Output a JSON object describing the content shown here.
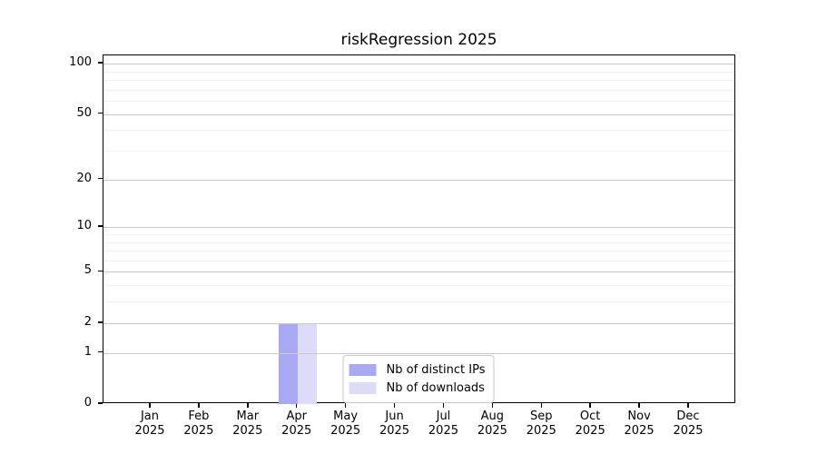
{
  "chart_data": {
    "type": "bar",
    "title": "riskRegression 2025",
    "x_categories": [
      "Jan",
      "Feb",
      "Mar",
      "Apr",
      "May",
      "Jun",
      "Jul",
      "Aug",
      "Sep",
      "Oct",
      "Nov",
      "Dec"
    ],
    "x_year": "2025",
    "series": [
      {
        "name": "Nb of distinct IPs",
        "color": "#a9a9f3",
        "values": [
          0,
          0,
          0,
          2,
          0,
          0,
          0,
          0,
          0,
          0,
          0,
          0
        ]
      },
      {
        "name": "Nb of downloads",
        "color": "#dcdcf8",
        "values": [
          0,
          0,
          0,
          2,
          0,
          0,
          0,
          0,
          0,
          0,
          0,
          0
        ]
      }
    ],
    "yscale": "log1p",
    "ylim": [
      0,
      112
    ],
    "yticks": [
      0,
      1,
      2,
      5,
      10,
      20,
      50,
      100
    ],
    "minor_gridlines": [
      3,
      4,
      6,
      7,
      8,
      9,
      30,
      40,
      60,
      70,
      80,
      90
    ],
    "grid": "horizontal",
    "legend": {
      "position": "lower center",
      "entries": [
        "Nb of distinct IPs",
        "Nb of downloads"
      ]
    },
    "colors": {
      "major_grid": "#c9c9c9",
      "minor_grid": "#efefef",
      "axis": "#000000",
      "background": "#ffffff"
    }
  }
}
